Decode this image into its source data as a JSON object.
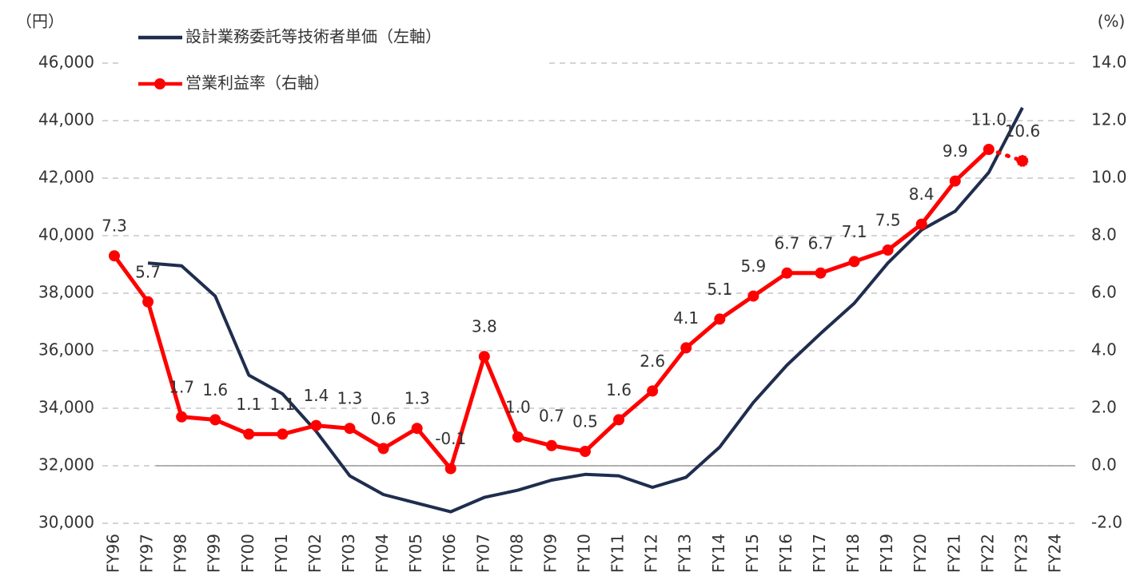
{
  "chart_data": {
    "type": "line",
    "y_unit_label": "（円）",
    "y2_unit_label": "(%)",
    "categories": [
      "FY96",
      "FY97",
      "FY98",
      "FY99",
      "FY00",
      "FY01",
      "FY02",
      "FY03",
      "FY04",
      "FY05",
      "FY06",
      "FY07",
      "FY08",
      "FY09",
      "FY10",
      "FY11",
      "FY12",
      "FY13",
      "FY14",
      "FY15",
      "FY16",
      "FY17",
      "FY18",
      "FY19",
      "FY20",
      "FY21",
      "FY22",
      "FY23",
      "FY24"
    ],
    "series": [
      {
        "name": "設計業務委託等技術者単価（左軸）",
        "color": "#1f2d4e",
        "axis": "y",
        "values": [
          null,
          39050,
          38950,
          37900,
          35150,
          34500,
          33200,
          31650,
          31000,
          30700,
          30400,
          30900,
          31150,
          31500,
          31700,
          31650,
          31250,
          31600,
          32650,
          34200,
          35500,
          36600,
          37650,
          39050,
          40200,
          40850,
          42200,
          44450,
          null
        ]
      },
      {
        "name": "営業利益率（右軸）",
        "color": "#ff0000",
        "axis": "y2",
        "values": [
          7.3,
          5.7,
          1.7,
          1.6,
          1.1,
          1.1,
          1.4,
          1.3,
          0.6,
          1.3,
          -0.1,
          3.8,
          1.0,
          0.7,
          0.5,
          1.6,
          2.6,
          4.1,
          5.1,
          5.9,
          6.7,
          6.7,
          7.1,
          7.5,
          8.4,
          9.9,
          11.0,
          10.6,
          null
        ],
        "value_labels": [
          "7.3",
          "5.7",
          "1.7",
          "1.6",
          "1.1",
          "1.1",
          "1.4",
          "1.3",
          "0.6",
          "1.3",
          "-0.1",
          "3.8",
          "1.0",
          "0.7",
          "0.5",
          "1.6",
          "2.6",
          "4.1",
          "5.1",
          "5.9",
          "6.7",
          "6.7",
          "7.1",
          "7.5",
          "8.4",
          "9.9",
          "11.0",
          "10.6",
          null
        ]
      }
    ],
    "ylim": [
      30000,
      46000
    ],
    "yticks": [
      {
        "value": 30000,
        "label": "30,000"
      },
      {
        "value": 32000,
        "label": "32,000"
      },
      {
        "value": 34000,
        "label": "34,000"
      },
      {
        "value": 36000,
        "label": "36,000"
      },
      {
        "value": 38000,
        "label": "38,000"
      },
      {
        "value": 40000,
        "label": "40,000"
      },
      {
        "value": 42000,
        "label": "42,000"
      },
      {
        "value": 44000,
        "label": "44,000"
      },
      {
        "value": 46000,
        "label": "46,000"
      }
    ],
    "y2lim": [
      -2,
      14
    ],
    "y2ticks": [
      {
        "value": -2,
        "label": "-2.0"
      },
      {
        "value": 0,
        "label": "0.0"
      },
      {
        "value": 2,
        "label": "2.0"
      },
      {
        "value": 4,
        "label": "4.0"
      },
      {
        "value": 6,
        "label": "6.0"
      },
      {
        "value": 8,
        "label": "8.0"
      },
      {
        "value": 10,
        "label": "10.0"
      },
      {
        "value": 12,
        "label": "12.0"
      },
      {
        "value": 14,
        "label": "14.0"
      }
    ],
    "grid": true
  }
}
